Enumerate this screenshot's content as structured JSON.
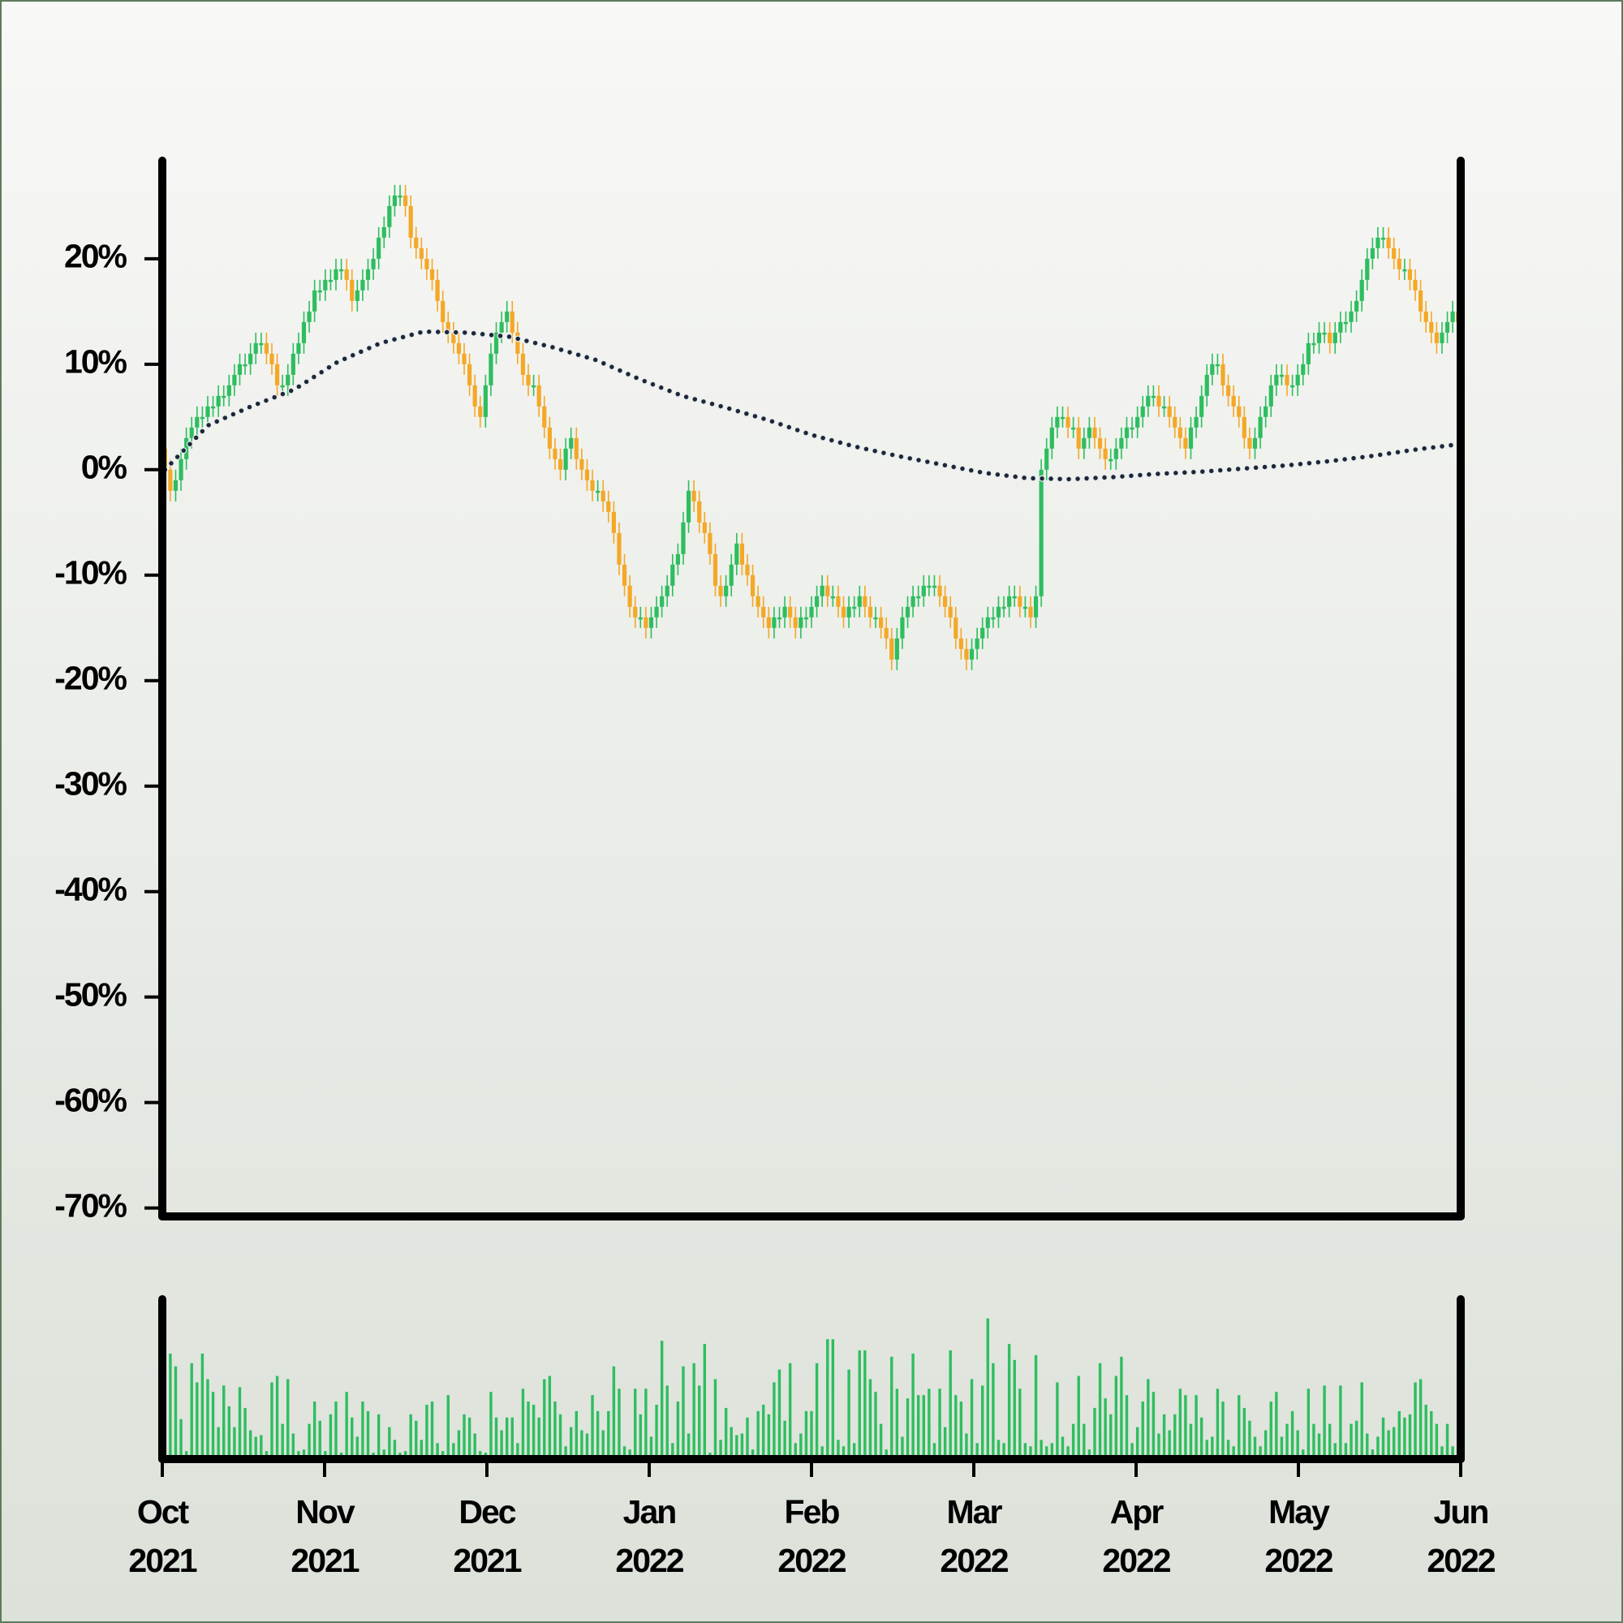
{
  "chart_data": {
    "type": "candlestick",
    "open": [
      2,
      0,
      -2,
      -1,
      1,
      3,
      4,
      5,
      5,
      6,
      6,
      7,
      7,
      8,
      9,
      10,
      10,
      11,
      12,
      12,
      11,
      10,
      8,
      8,
      9,
      11,
      12,
      14,
      15,
      17,
      17,
      18,
      18,
      19,
      19,
      18,
      16,
      17,
      18,
      19,
      20,
      22,
      23,
      25,
      26,
      26,
      25,
      22,
      21,
      20,
      19,
      18,
      16,
      14,
      13,
      12,
      11,
      10,
      8,
      6,
      5,
      8,
      11,
      13,
      14,
      15,
      13,
      11,
      9,
      8,
      8,
      6,
      4,
      2,
      1,
      0,
      2,
      3,
      1,
      0,
      -1,
      -2,
      -2,
      -3,
      -4,
      -6,
      -9,
      -11,
      -13,
      -14,
      -14,
      -15,
      -14,
      -13,
      -12,
      -11,
      -9,
      -8,
      -5,
      -2,
      -3,
      -5,
      -6,
      -8,
      -11,
      -12,
      -11,
      -9,
      -7,
      -9,
      -10,
      -12,
      -13,
      -14,
      -15,
      -14,
      -14,
      -13,
      -14,
      -15,
      -14,
      -14,
      -13,
      -12,
      -11,
      -12,
      -12,
      -13,
      -14,
      -13,
      -13,
      -12,
      -13,
      -14,
      -14,
      -15,
      -16,
      -18,
      -16,
      -14,
      -13,
      -12,
      -12,
      -11,
      -11,
      -11,
      -12,
      -13,
      -14,
      -16,
      -17,
      -18,
      -17,
      -16,
      -15,
      -14,
      -14,
      -13,
      -13,
      -12,
      -12,
      -13,
      -13,
      -14,
      -12,
      0,
      2,
      4,
      5,
      5,
      4,
      4,
      2,
      3,
      4,
      3,
      2,
      1,
      1,
      2,
      3,
      4,
      4,
      5,
      6,
      7,
      7,
      6,
      6,
      5,
      4,
      3,
      2,
      4,
      5,
      7,
      9,
      10,
      10,
      8,
      7,
      6,
      5,
      3,
      2,
      3,
      5,
      6,
      8,
      9,
      9,
      8,
      8,
      9,
      10,
      12,
      12,
      13,
      13,
      12,
      13,
      14,
      14,
      15,
      16,
      18,
      20,
      21,
      22,
      22,
      21,
      20,
      19,
      19,
      18,
      17,
      15,
      14,
      13,
      12,
      13,
      14,
      15
    ],
    "high": [
      3,
      1,
      0,
      2,
      4,
      5,
      6,
      6,
      7,
      7,
      8,
      8,
      9,
      10,
      11,
      11,
      12,
      13,
      13,
      13,
      12,
      11,
      9,
      10,
      12,
      13,
      15,
      16,
      18,
      18,
      19,
      19,
      20,
      20,
      20,
      19,
      18,
      19,
      20,
      21,
      23,
      24,
      26,
      27,
      27,
      27,
      26,
      23,
      22,
      21,
      20,
      19,
      17,
      15,
      14,
      13,
      12,
      11,
      9,
      7,
      9,
      12,
      14,
      15,
      16,
      16,
      14,
      12,
      10,
      9,
      9,
      7,
      5,
      3,
      2,
      3,
      4,
      4,
      2,
      1,
      0,
      -1,
      -1,
      -2,
      -3,
      -5,
      -8,
      -10,
      -12,
      -13,
      -13,
      -13,
      -12,
      -11,
      -10,
      -8,
      -7,
      -4,
      -1,
      -1,
      -2,
      -4,
      -5,
      -7,
      -10,
      -10,
      -8,
      -6,
      -6,
      -8,
      -9,
      -11,
      -12,
      -13,
      -13,
      -13,
      -12,
      -12,
      -13,
      -13,
      -13,
      -12,
      -11,
      -10,
      -10,
      -11,
      -11,
      -12,
      -12,
      -12,
      -11,
      -11,
      -12,
      -13,
      -13,
      -14,
      -15,
      -15,
      -13,
      -12,
      -11,
      -11,
      -10,
      -10,
      -10,
      -10,
      -11,
      -12,
      -13,
      -15,
      -16,
      -16,
      -15,
      -14,
      -13,
      -13,
      -12,
      -12,
      -11,
      -11,
      -11,
      -12,
      -12,
      -11,
      1,
      3,
      5,
      6,
      6,
      6,
      5,
      5,
      4,
      5,
      5,
      4,
      3,
      2,
      3,
      4,
      5,
      5,
      6,
      7,
      8,
      8,
      8,
      7,
      7,
      6,
      5,
      4,
      5,
      6,
      8,
      10,
      11,
      11,
      11,
      9,
      8,
      7,
      6,
      4,
      4,
      6,
      7,
      9,
      10,
      10,
      10,
      9,
      10,
      11,
      13,
      13,
      14,
      14,
      14,
      14,
      15,
      15,
      16,
      17,
      19,
      21,
      22,
      23,
      23,
      23,
      22,
      21,
      20,
      20,
      19,
      18,
      16,
      15,
      14,
      14,
      15,
      16,
      16
    ],
    "low": [
      -1,
      -3,
      -3,
      -2,
      0,
      2,
      3,
      4,
      4,
      5,
      5,
      6,
      6,
      7,
      8,
      9,
      9,
      10,
      11,
      10,
      9,
      7,
      7,
      7,
      8,
      10,
      11,
      13,
      14,
      16,
      16,
      17,
      17,
      18,
      17,
      15,
      15,
      16,
      17,
      18,
      19,
      21,
      22,
      24,
      25,
      24,
      21,
      20,
      19,
      18,
      17,
      15,
      13,
      12,
      11,
      10,
      9,
      7,
      5,
      4,
      4,
      7,
      10,
      12,
      13,
      12,
      10,
      8,
      7,
      7,
      5,
      3,
      1,
      0,
      -1,
      -1,
      1,
      0,
      -1,
      -2,
      -3,
      -3,
      -4,
      -5,
      -7,
      -10,
      -12,
      -14,
      -15,
      -15,
      -16,
      -16,
      -15,
      -14,
      -13,
      -12,
      -10,
      -9,
      -6,
      -4,
      -6,
      -7,
      -9,
      -12,
      -13,
      -13,
      -12,
      -10,
      -10,
      -11,
      -13,
      -14,
      -15,
      -16,
      -16,
      -15,
      -15,
      -15,
      -16,
      -16,
      -15,
      -15,
      -14,
      -13,
      -13,
      -13,
      -14,
      -15,
      -15,
      -14,
      -14,
      -14,
      -15,
      -15,
      -16,
      -17,
      -19,
      -19,
      -17,
      -15,
      -14,
      -13,
      -13,
      -12,
      -12,
      -13,
      -14,
      -15,
      -17,
      -18,
      -19,
      -19,
      -18,
      -17,
      -16,
      -15,
      -15,
      -14,
      -14,
      -13,
      -14,
      -14,
      -15,
      -15,
      -13,
      -1,
      1,
      3,
      4,
      3,
      3,
      1,
      1,
      2,
      2,
      1,
      0,
      0,
      0,
      1,
      2,
      3,
      3,
      4,
      5,
      6,
      5,
      5,
      4,
      3,
      2,
      1,
      1,
      3,
      4,
      6,
      8,
      9,
      7,
      6,
      5,
      4,
      2,
      1,
      1,
      2,
      4,
      5,
      7,
      8,
      7,
      7,
      7,
      8,
      9,
      11,
      11,
      12,
      11,
      11,
      12,
      13,
      13,
      14,
      15,
      17,
      19,
      20,
      21,
      20,
      19,
      18,
      18,
      17,
      16,
      14,
      13,
      12,
      11,
      11,
      12,
      13,
      13
    ],
    "close": [
      0,
      -2,
      -1,
      1,
      3,
      4,
      5,
      5,
      6,
      6,
      7,
      7,
      8,
      9,
      10,
      10,
      11,
      12,
      12,
      11,
      10,
      8,
      8,
      9,
      11,
      12,
      14,
      15,
      17,
      17,
      18,
      18,
      19,
      19,
      18,
      16,
      17,
      18,
      19,
      20,
      22,
      23,
      25,
      26,
      26,
      25,
      22,
      21,
      20,
      19,
      18,
      16,
      14,
      13,
      12,
      11,
      10,
      8,
      6,
      5,
      8,
      11,
      13,
      14,
      15,
      13,
      11,
      9,
      8,
      8,
      6,
      4,
      2,
      1,
      0,
      2,
      3,
      1,
      0,
      -1,
      -2,
      -2,
      -3,
      -4,
      -6,
      -9,
      -11,
      -13,
      -14,
      -14,
      -15,
      -14,
      -13,
      -12,
      -11,
      -9,
      -8,
      -5,
      -2,
      -3,
      -5,
      -6,
      -8,
      -11,
      -12,
      -11,
      -9,
      -7,
      -9,
      -10,
      -12,
      -13,
      -14,
      -15,
      -14,
      -14,
      -13,
      -14,
      -15,
      -14,
      -14,
      -13,
      -12,
      -11,
      -12,
      -12,
      -13,
      -14,
      -13,
      -13,
      -12,
      -13,
      -14,
      -14,
      -15,
      -16,
      -18,
      -16,
      -14,
      -13,
      -12,
      -12,
      -11,
      -11,
      -11,
      -12,
      -13,
      -14,
      -16,
      -17,
      -18,
      -17,
      -16,
      -15,
      -14,
      -14,
      -13,
      -13,
      -12,
      -12,
      -13,
      -13,
      -14,
      -12,
      0,
      2,
      4,
      5,
      5,
      4,
      4,
      2,
      3,
      4,
      3,
      2,
      1,
      1,
      2,
      3,
      4,
      4,
      5,
      6,
      7,
      7,
      6,
      6,
      5,
      4,
      3,
      2,
      4,
      5,
      7,
      9,
      10,
      10,
      8,
      7,
      6,
      5,
      3,
      2,
      3,
      5,
      6,
      8,
      9,
      9,
      8,
      8,
      9,
      10,
      12,
      12,
      13,
      13,
      12,
      13,
      14,
      14,
      15,
      16,
      18,
      20,
      21,
      22,
      22,
      21,
      20,
      19,
      19,
      18,
      17,
      15,
      14,
      13,
      12,
      13,
      14,
      15,
      14
    ],
    "volume": [
      68,
      66,
      58,
      25,
      5,
      60,
      48,
      66,
      50,
      42,
      20,
      46,
      33,
      20,
      45,
      32,
      18,
      14,
      15,
      5,
      48,
      52,
      22,
      50,
      16,
      5,
      6,
      22,
      36,
      24,
      5,
      28,
      36,
      4,
      42,
      26,
      14,
      36,
      30,
      4,
      28,
      6,
      20,
      12,
      4,
      5,
      28,
      24,
      12,
      34,
      36,
      10,
      5,
      40,
      10,
      18,
      28,
      26,
      16,
      5,
      4,
      42,
      26,
      18,
      26,
      26,
      10,
      44,
      36,
      34,
      26,
      50,
      52,
      36,
      28,
      8,
      20,
      30,
      18,
      16,
      40,
      30,
      18,
      30,
      58,
      44,
      8,
      6,
      44,
      28,
      44,
      14,
      34,
      74,
      46,
      10,
      36,
      58,
      16,
      60,
      46,
      72,
      4,
      50,
      12,
      32,
      20,
      15,
      16,
      26,
      6,
      30,
      34,
      28,
      48,
      56,
      24,
      60,
      10,
      16,
      30,
      30,
      60,
      8,
      75,
      75,
      12,
      8,
      56,
      10,
      68,
      68,
      50,
      42,
      22,
      6,
      64,
      44,
      14,
      38,
      66,
      40,
      40,
      44,
      10,
      44,
      20,
      68,
      40,
      36,
      16,
      50,
      10,
      46,
      88,
      60,
      12,
      10,
      72,
      62,
      44,
      10,
      8,
      65,
      12,
      8,
      10,
      48,
      14,
      8,
      22,
      52,
      22,
      6,
      32,
      60,
      38,
      28,
      52,
      64,
      40,
      10,
      20,
      36,
      50,
      42,
      16,
      28,
      18,
      28,
      44,
      40,
      22,
      40,
      26,
      12,
      14,
      44,
      36,
      12,
      8,
      40,
      32,
      24,
      14,
      8,
      18,
      36,
      42,
      14,
      22,
      30,
      18,
      6,
      44,
      22,
      16,
      46,
      22,
      10,
      46,
      10,
      22,
      24,
      48,
      16,
      6,
      14,
      26,
      18,
      20,
      30,
      26,
      28,
      48,
      50,
      34,
      30,
      22,
      8,
      22,
      8,
      14
    ],
    "moving_average": {
      "color": "#1c2838",
      "values": [
        0,
        4.2,
        6,
        7.6,
        10.2,
        12,
        13.1,
        13,
        12.6,
        11.6,
        10.4,
        8.6,
        7,
        5.9,
        4.7,
        3.3,
        2.2,
        1.3,
        0.5,
        -0.3,
        -0.8,
        -0.9,
        -0.7,
        -0.4,
        -0.2,
        0.1,
        0.4,
        0.8,
        1.3,
        1.9,
        2.4
      ]
    },
    "colors": {
      "up": "#2dbe5f",
      "down": "#f4a826"
    },
    "volume_color": "#2dbe5f",
    "ylim": [
      -70.8,
      29.3
    ],
    "yticks": [
      {
        "value": -70,
        "label": "-70%"
      },
      {
        "value": -60,
        "label": "-60%"
      },
      {
        "value": -50,
        "label": "-50%"
      },
      {
        "value": -40,
        "label": "-40%"
      },
      {
        "value": -30,
        "label": "-30%"
      },
      {
        "value": -20,
        "label": "-20%"
      },
      {
        "value": -10,
        "label": "-10%"
      },
      {
        "value": 0,
        "label": "0%"
      },
      {
        "value": 10,
        "label": "10%"
      },
      {
        "value": 20,
        "label": "20%"
      }
    ],
    "vlim": [
      0,
      100
    ],
    "xlim": [
      "2021-10",
      "2022-06"
    ],
    "xticks": [
      {
        "value": "2021-10",
        "label": [
          "Oct",
          "2021"
        ]
      },
      {
        "value": "2021-11",
        "label": [
          "Nov",
          "2021"
        ]
      },
      {
        "value": "2021-12",
        "label": [
          "Dec",
          "2021"
        ]
      },
      {
        "value": "2022-01",
        "label": [
          "Jan",
          "2022"
        ]
      },
      {
        "value": "2022-02",
        "label": [
          "Feb",
          "2022"
        ]
      },
      {
        "value": "2022-03",
        "label": [
          "Mar",
          "2022"
        ]
      },
      {
        "value": "2022-04",
        "label": [
          "Apr",
          "2022"
        ]
      },
      {
        "value": "2022-05",
        "label": [
          "May",
          "2022"
        ]
      },
      {
        "value": "2022-06",
        "label": [
          "Jun",
          "2022"
        ]
      }
    ]
  }
}
